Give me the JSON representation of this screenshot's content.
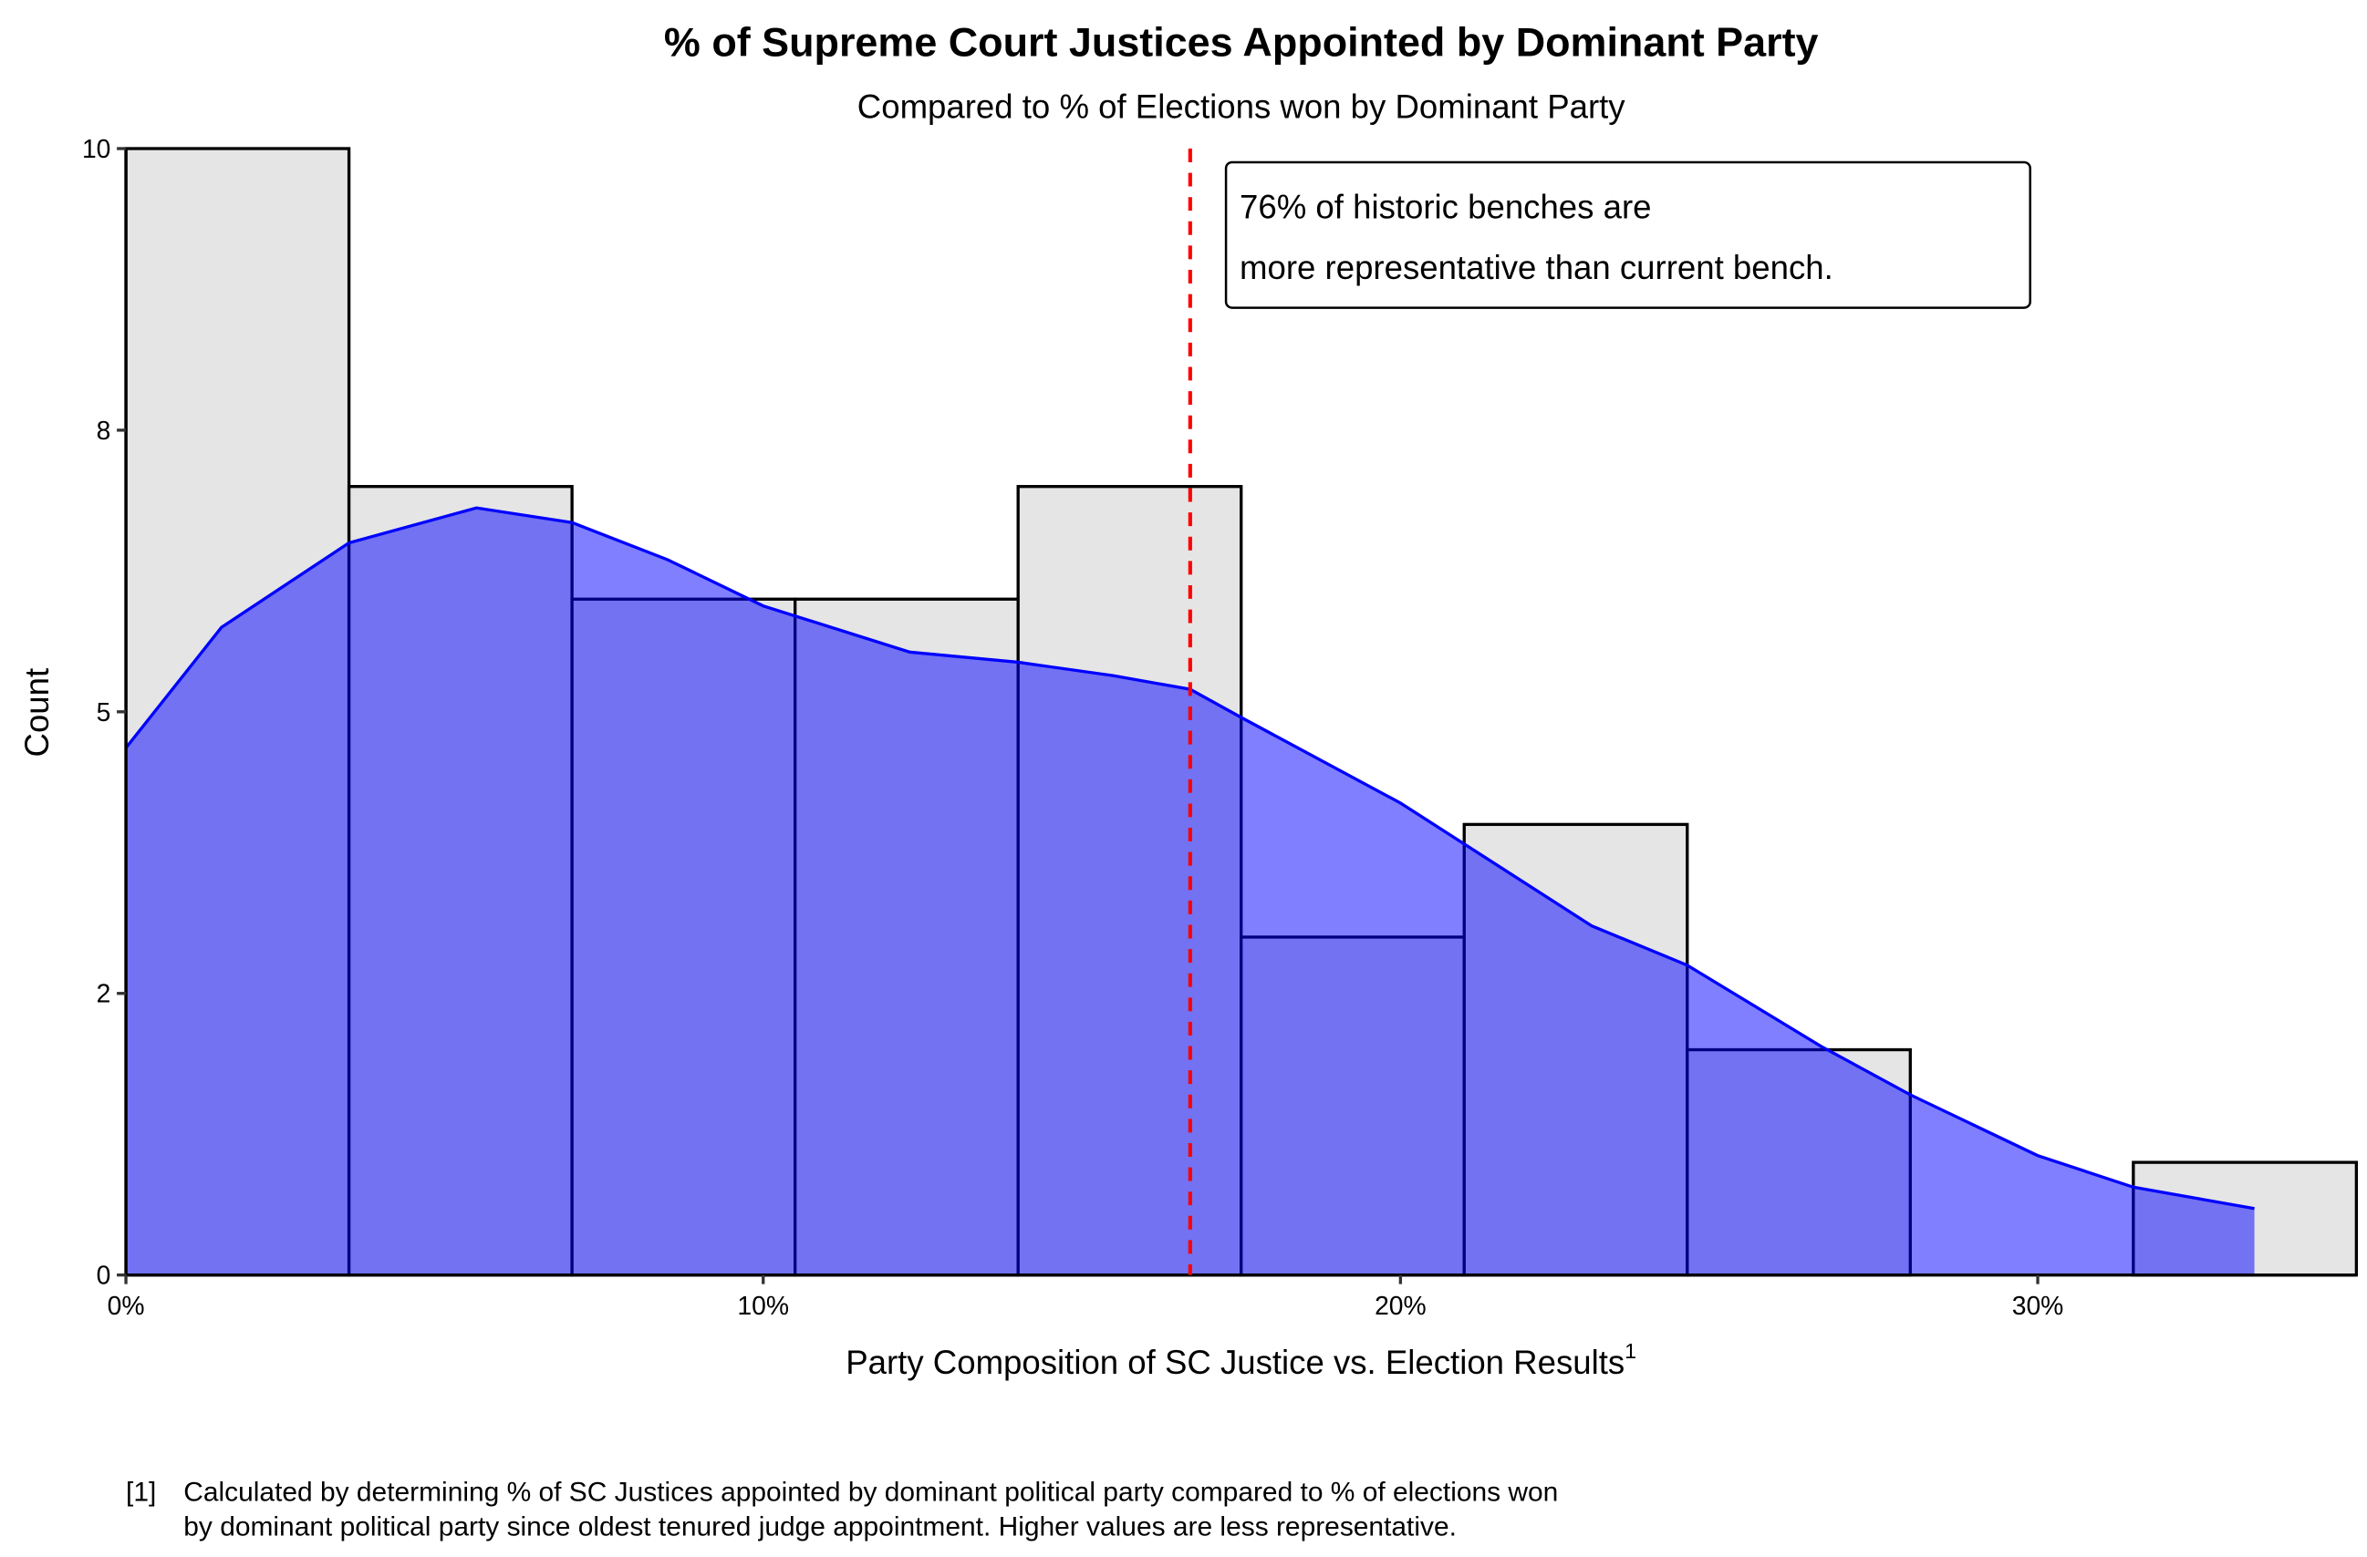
{
  "chart_data": {
    "type": "histogram",
    "title": "% of Supreme Court Justices Appointed by Dominant Party",
    "subtitle": "Compared to % of Elections won by Dominant Party",
    "x_label": "Party Composition of SC Justice vs. Election Results",
    "x_label_superscript": "1",
    "y_label": "Count",
    "bins": [
      0,
      3.5,
      7,
      10.5,
      14,
      17.5,
      21,
      24.5,
      28,
      31.5,
      35
    ],
    "counts": [
      10,
      7,
      6,
      6,
      7,
      3,
      4,
      2,
      0,
      1
    ],
    "color": "#e5e5e5",
    "density": {
      "color": "#0000ff",
      "x": [
        0,
        1.5,
        3.5,
        5.5,
        7,
        8.5,
        10,
        12.3,
        14,
        15.5,
        16.7,
        17.5,
        20,
        23,
        24.5,
        26.6,
        28,
        30,
        31.5,
        33.4
      ],
      "values": [
        4.68,
        5.75,
        6.5,
        6.81,
        6.68,
        6.35,
        5.94,
        5.53,
        5.44,
        5.32,
        5.2,
        4.95,
        4.19,
        3.1,
        2.75,
        2.03,
        1.6,
        1.06,
        0.78,
        0.59
      ]
    },
    "reference_line": {
      "x": 16.7,
      "color": "#ff0000"
    },
    "annotation": [
      "76% of historic benches are",
      "more representative than current bench."
    ],
    "xlim": [
      0,
      35
    ],
    "ylim": [
      0,
      10
    ],
    "xticks": [
      {
        "value": 0,
        "label": "0%"
      },
      {
        "value": 10,
        "label": "10%"
      },
      {
        "value": 20,
        "label": "20%"
      },
      {
        "value": 30,
        "label": "30%"
      }
    ],
    "yticks": [
      0,
      {
        "value": 2.5,
        "label": "2"
      },
      5,
      {
        "value": 7.5,
        "label": "8"
      },
      10
    ],
    "footnote": {
      "marker": "[1]",
      "lines": [
        "Calculated by determining % of SC Justices appointed by dominant political party compared to % of elections won",
        "by dominant political party since oldest tenured judge appointment. Higher values are less representative."
      ]
    }
  }
}
